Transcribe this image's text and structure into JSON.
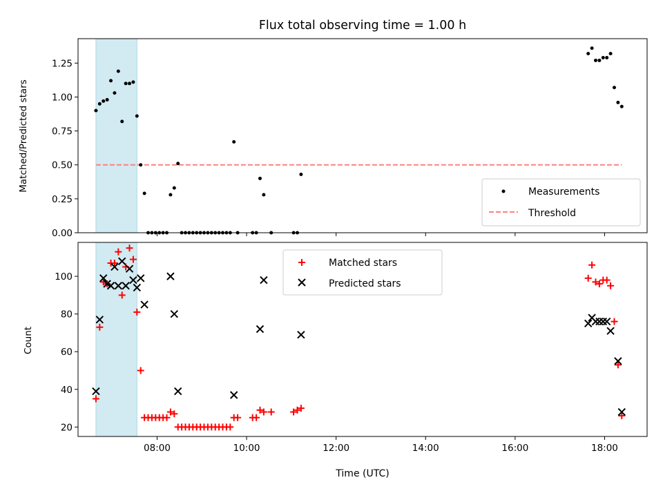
{
  "title": "Flux total observing time = 1.00 h",
  "colors": {
    "shade": "#add8e6",
    "measurement": "#000000",
    "threshold": "#ff7f7f",
    "matched": "#ff0000",
    "predicted": "#000000"
  },
  "chart_data": [
    {
      "type": "scatter",
      "ylabel": "Matched/Predicted stars",
      "xlabel": "",
      "ylim": [
        0,
        1.43
      ],
      "xlim": [
        "06:14",
        "18:57"
      ],
      "y_ticks": [
        "0.00",
        "0.25",
        "0.50",
        "0.75",
        "1.00",
        "1.25"
      ],
      "shaded_span": [
        "06:38",
        "07:33"
      ],
      "legend": {
        "location": "lower right",
        "entries": [
          "Measurements",
          "Threshold"
        ]
      },
      "threshold": {
        "name": "Threshold",
        "value": 0.5,
        "x_range": [
          "06:38",
          "18:23"
        ]
      },
      "series": [
        {
          "name": "Measurements",
          "points": [
            [
              "06:38",
              0.9
            ],
            [
              "06:43",
              0.95
            ],
            [
              "06:48",
              0.97
            ],
            [
              "06:53",
              0.98
            ],
            [
              "06:58",
              1.12
            ],
            [
              "07:03",
              1.03
            ],
            [
              "07:08",
              1.19
            ],
            [
              "07:13",
              0.82
            ],
            [
              "07:18",
              1.1
            ],
            [
              "07:23",
              1.1
            ],
            [
              "07:28",
              1.11
            ],
            [
              "07:33",
              0.86
            ],
            [
              "07:38",
              0.5
            ],
            [
              "07:43",
              0.29
            ],
            [
              "07:48",
              0.0
            ],
            [
              "07:53",
              0.0
            ],
            [
              "07:58",
              0.0
            ],
            [
              "08:03",
              0.0
            ],
            [
              "08:08",
              0.0
            ],
            [
              "08:13",
              0.0
            ],
            [
              "08:18",
              0.28
            ],
            [
              "08:23",
              0.33
            ],
            [
              "08:28",
              0.51
            ],
            [
              "08:33",
              0.0
            ],
            [
              "08:38",
              0.0
            ],
            [
              "08:43",
              0.0
            ],
            [
              "08:48",
              0.0
            ],
            [
              "08:53",
              0.0
            ],
            [
              "08:58",
              0.0
            ],
            [
              "09:03",
              0.0
            ],
            [
              "09:08",
              0.0
            ],
            [
              "09:13",
              0.0
            ],
            [
              "09:18",
              0.0
            ],
            [
              "09:23",
              0.0
            ],
            [
              "09:28",
              0.0
            ],
            [
              "09:33",
              0.0
            ],
            [
              "09:38",
              0.0
            ],
            [
              "09:43",
              0.67
            ],
            [
              "09:48",
              0.0
            ],
            [
              "10:08",
              0.0
            ],
            [
              "10:13",
              0.0
            ],
            [
              "10:18",
              0.4
            ],
            [
              "10:23",
              0.28
            ],
            [
              "10:33",
              0.0
            ],
            [
              "11:03",
              0.0
            ],
            [
              "11:08",
              0.0
            ],
            [
              "11:13",
              0.43
            ],
            [
              "17:38",
              1.32
            ],
            [
              "17:43",
              1.36
            ],
            [
              "17:48",
              1.27
            ],
            [
              "17:53",
              1.27
            ],
            [
              "17:58",
              1.29
            ],
            [
              "18:03",
              1.29
            ],
            [
              "18:08",
              1.32
            ],
            [
              "18:13",
              1.07
            ],
            [
              "18:18",
              0.96
            ],
            [
              "18:23",
              0.93
            ]
          ]
        }
      ]
    },
    {
      "type": "scatter",
      "ylabel": "Count",
      "xlabel": "Time (UTC)",
      "ylim": [
        15,
        118
      ],
      "xlim": [
        "06:14",
        "18:57"
      ],
      "x_ticks": [
        "08:00",
        "10:00",
        "12:00",
        "14:00",
        "16:00",
        "18:00"
      ],
      "y_ticks": [
        "20",
        "40",
        "60",
        "80",
        "100"
      ],
      "shaded_span": [
        "06:38",
        "07:33"
      ],
      "legend": {
        "location": "upper center",
        "entries": [
          "Matched stars",
          "Predicted stars"
        ]
      },
      "series": [
        {
          "name": "Matched stars",
          "marker": "plus",
          "points": [
            [
              "06:38",
              35
            ],
            [
              "06:43",
              73
            ],
            [
              "06:48",
              97
            ],
            [
              "06:53",
              96
            ],
            [
              "06:58",
              107
            ],
            [
              "07:03",
              107
            ],
            [
              "07:08",
              113
            ],
            [
              "07:13",
              90
            ],
            [
              "07:18",
              105
            ],
            [
              "07:23",
              115
            ],
            [
              "07:28",
              109
            ],
            [
              "07:33",
              81
            ],
            [
              "07:38",
              50
            ],
            [
              "07:43",
              25
            ],
            [
              "07:48",
              25
            ],
            [
              "07:53",
              25
            ],
            [
              "07:58",
              25
            ],
            [
              "08:03",
              25
            ],
            [
              "08:08",
              25
            ],
            [
              "08:13",
              25
            ],
            [
              "08:18",
              28
            ],
            [
              "08:23",
              27
            ],
            [
              "08:28",
              20
            ],
            [
              "08:33",
              20
            ],
            [
              "08:38",
              20
            ],
            [
              "08:43",
              20
            ],
            [
              "08:48",
              20
            ],
            [
              "08:53",
              20
            ],
            [
              "08:58",
              20
            ],
            [
              "09:03",
              20
            ],
            [
              "09:08",
              20
            ],
            [
              "09:13",
              20
            ],
            [
              "09:18",
              20
            ],
            [
              "09:23",
              20
            ],
            [
              "09:28",
              20
            ],
            [
              "09:33",
              20
            ],
            [
              "09:38",
              20
            ],
            [
              "09:43",
              25
            ],
            [
              "09:48",
              25
            ],
            [
              "10:08",
              25
            ],
            [
              "10:13",
              25
            ],
            [
              "10:18",
              29
            ],
            [
              "10:23",
              28
            ],
            [
              "10:33",
              28
            ],
            [
              "11:03",
              28
            ],
            [
              "11:08",
              29
            ],
            [
              "11:13",
              30
            ],
            [
              "17:38",
              99
            ],
            [
              "17:43",
              106
            ],
            [
              "17:48",
              97
            ],
            [
              "17:53",
              96
            ],
            [
              "17:58",
              98
            ],
            [
              "18:03",
              98
            ],
            [
              "18:08",
              95
            ],
            [
              "18:13",
              76
            ],
            [
              "18:18",
              53
            ],
            [
              "18:23",
              26
            ]
          ]
        },
        {
          "name": "Predicted stars",
          "marker": "x",
          "points": [
            [
              "06:38",
              39
            ],
            [
              "06:43",
              77
            ],
            [
              "06:48",
              99
            ],
            [
              "06:53",
              96
            ],
            [
              "06:58",
              95
            ],
            [
              "07:03",
              105
            ],
            [
              "07:08",
              95
            ],
            [
              "07:13",
              108
            ],
            [
              "07:18",
              95
            ],
            [
              "07:23",
              104
            ],
            [
              "07:28",
              98
            ],
            [
              "07:33",
              94
            ],
            [
              "07:38",
              99
            ],
            [
              "07:43",
              85
            ],
            [
              "08:18",
              100
            ],
            [
              "08:23",
              80
            ],
            [
              "08:28",
              39
            ],
            [
              "09:43",
              37
            ],
            [
              "10:18",
              72
            ],
            [
              "10:23",
              98
            ],
            [
              "11:13",
              69
            ],
            [
              "17:38",
              75
            ],
            [
              "17:43",
              78
            ],
            [
              "17:48",
              76
            ],
            [
              "17:53",
              76
            ],
            [
              "17:58",
              76
            ],
            [
              "18:03",
              76
            ],
            [
              "18:08",
              71
            ],
            [
              "18:18",
              55
            ],
            [
              "18:23",
              28
            ]
          ]
        }
      ]
    }
  ]
}
